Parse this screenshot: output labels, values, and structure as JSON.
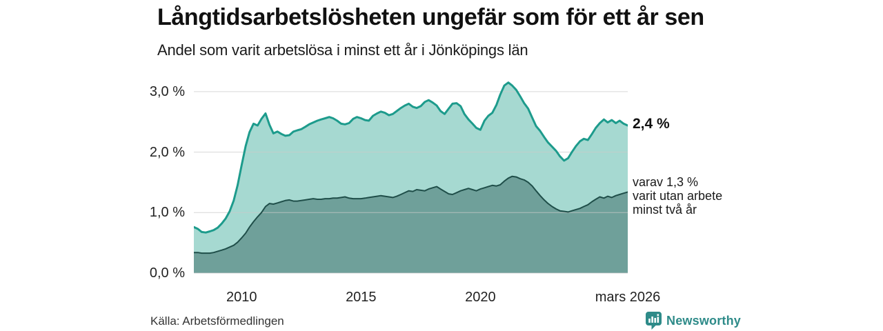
{
  "header": {
    "title": "Långtidsarbetslösheten ungefär som för ett år sen",
    "subtitle": "Andel som varit arbetslösa i minst ett år i Jönköpings län"
  },
  "annotations": {
    "primary": "2,4 %",
    "secondary": [
      "varav 1,3 %",
      "varit utan arbete",
      "minst två år"
    ]
  },
  "footer": {
    "source": "Källa: Arbetsförmedlingen",
    "brand": "Newsworthy"
  },
  "colors": {
    "grid": "#c9c9c9",
    "title_text": "#111111",
    "axis_text": "#222222",
    "brand_teal": "#2e8b89",
    "line_total": "#1d9b8c",
    "fill_total": "#a6d9d1",
    "line_two_year": "#1f4e49",
    "fill_two_year": "#6fa09a"
  },
  "chart_data": {
    "type": "area",
    "title": "Långtidsarbetslösheten ungefär som för ett år sen",
    "subtitle": "Andel som varit arbetslösa i minst ett år i Jönköpings län",
    "unit": "%",
    "grid": true,
    "ylim": [
      0,
      3.35
    ],
    "x_start": 2008.0,
    "x_end": 2026.17,
    "x_ticks": [
      {
        "v": 2010,
        "label": "2010"
      },
      {
        "v": 2015,
        "label": "2015"
      },
      {
        "v": 2020,
        "label": "2020"
      },
      {
        "v": 2026.17,
        "label": "mars 2026"
      }
    ],
    "y_ticks": [
      {
        "v": 0,
        "label": "0,0 %"
      },
      {
        "v": 1,
        "label": "1,0 %"
      },
      {
        "v": 2,
        "label": "2,0 %"
      },
      {
        "v": 3,
        "label": "3,0 %"
      }
    ],
    "x": [
      2008,
      2008.17,
      2008.33,
      2008.5,
      2008.67,
      2008.83,
      2009,
      2009.17,
      2009.33,
      2009.5,
      2009.67,
      2009.83,
      2010,
      2010.17,
      2010.33,
      2010.5,
      2010.67,
      2010.83,
      2011,
      2011.17,
      2011.33,
      2011.5,
      2011.67,
      2011.83,
      2012,
      2012.17,
      2012.33,
      2012.5,
      2012.67,
      2012.83,
      2013,
      2013.17,
      2013.33,
      2013.5,
      2013.67,
      2013.83,
      2014,
      2014.17,
      2014.33,
      2014.5,
      2014.67,
      2014.83,
      2015,
      2015.17,
      2015.33,
      2015.5,
      2015.67,
      2015.83,
      2016,
      2016.17,
      2016.33,
      2016.5,
      2016.67,
      2016.83,
      2017,
      2017.17,
      2017.33,
      2017.5,
      2017.67,
      2017.83,
      2018,
      2018.17,
      2018.33,
      2018.5,
      2018.67,
      2018.83,
      2019,
      2019.17,
      2019.33,
      2019.5,
      2019.67,
      2019.83,
      2020,
      2020.17,
      2020.33,
      2020.5,
      2020.67,
      2020.83,
      2021,
      2021.17,
      2021.33,
      2021.5,
      2021.67,
      2021.83,
      2022,
      2022.17,
      2022.33,
      2022.5,
      2022.67,
      2022.83,
      2023,
      2023.17,
      2023.33,
      2023.5,
      2023.67,
      2023.83,
      2024,
      2024.17,
      2024.33,
      2024.5,
      2024.67,
      2024.83,
      2025,
      2025.17,
      2025.33,
      2025.5,
      2025.67,
      2025.83,
      2026,
      2026.17
    ],
    "series": [
      {
        "name": "minst-ett-ar",
        "end_label": "2,4 %",
        "end_value": 2.4,
        "line_color": "#1d9b8c",
        "fill_color": "#a6d9d1",
        "line_width": 3,
        "values": [
          0.76,
          0.73,
          0.68,
          0.67,
          0.69,
          0.71,
          0.75,
          0.82,
          0.9,
          1.02,
          1.2,
          1.45,
          1.78,
          2.1,
          2.33,
          2.47,
          2.44,
          2.55,
          2.64,
          2.45,
          2.31,
          2.34,
          2.3,
          2.27,
          2.28,
          2.34,
          2.36,
          2.38,
          2.42,
          2.46,
          2.49,
          2.52,
          2.54,
          2.56,
          2.58,
          2.56,
          2.52,
          2.47,
          2.46,
          2.48,
          2.55,
          2.58,
          2.56,
          2.53,
          2.52,
          2.6,
          2.64,
          2.67,
          2.65,
          2.61,
          2.63,
          2.68,
          2.73,
          2.77,
          2.8,
          2.75,
          2.73,
          2.76,
          2.83,
          2.86,
          2.82,
          2.77,
          2.68,
          2.63,
          2.72,
          2.8,
          2.81,
          2.76,
          2.63,
          2.54,
          2.47,
          2.4,
          2.37,
          2.52,
          2.6,
          2.65,
          2.78,
          2.95,
          3.1,
          3.15,
          3.1,
          3.03,
          2.92,
          2.81,
          2.72,
          2.57,
          2.43,
          2.35,
          2.25,
          2.16,
          2.09,
          2.02,
          1.93,
          1.86,
          1.9,
          2.0,
          2.1,
          2.18,
          2.22,
          2.2,
          2.3,
          2.4,
          2.48,
          2.54,
          2.49,
          2.53,
          2.48,
          2.52,
          2.47,
          2.44
        ]
      },
      {
        "name": "minst-tva-ar",
        "end_label": "varav 1,3 % varit utan arbete minst två år",
        "end_value": 1.3,
        "line_color": "#1f4e49",
        "fill_color": "#6fa09a",
        "line_width": 2,
        "values": [
          0.34,
          0.34,
          0.33,
          0.33,
          0.33,
          0.34,
          0.36,
          0.38,
          0.4,
          0.43,
          0.46,
          0.51,
          0.58,
          0.66,
          0.76,
          0.85,
          0.93,
          1.0,
          1.1,
          1.15,
          1.14,
          1.16,
          1.18,
          1.2,
          1.21,
          1.19,
          1.19,
          1.2,
          1.21,
          1.22,
          1.23,
          1.22,
          1.22,
          1.23,
          1.23,
          1.24,
          1.24,
          1.25,
          1.26,
          1.24,
          1.23,
          1.23,
          1.23,
          1.24,
          1.25,
          1.26,
          1.27,
          1.28,
          1.27,
          1.26,
          1.25,
          1.27,
          1.3,
          1.33,
          1.36,
          1.35,
          1.38,
          1.37,
          1.36,
          1.39,
          1.41,
          1.43,
          1.39,
          1.35,
          1.31,
          1.3,
          1.33,
          1.36,
          1.38,
          1.4,
          1.38,
          1.36,
          1.39,
          1.41,
          1.43,
          1.45,
          1.44,
          1.46,
          1.52,
          1.57,
          1.6,
          1.59,
          1.56,
          1.54,
          1.5,
          1.44,
          1.36,
          1.28,
          1.21,
          1.15,
          1.1,
          1.06,
          1.03,
          1.02,
          1.01,
          1.03,
          1.05,
          1.07,
          1.1,
          1.13,
          1.18,
          1.22,
          1.26,
          1.24,
          1.27,
          1.25,
          1.28,
          1.3,
          1.32,
          1.34
        ]
      }
    ]
  }
}
